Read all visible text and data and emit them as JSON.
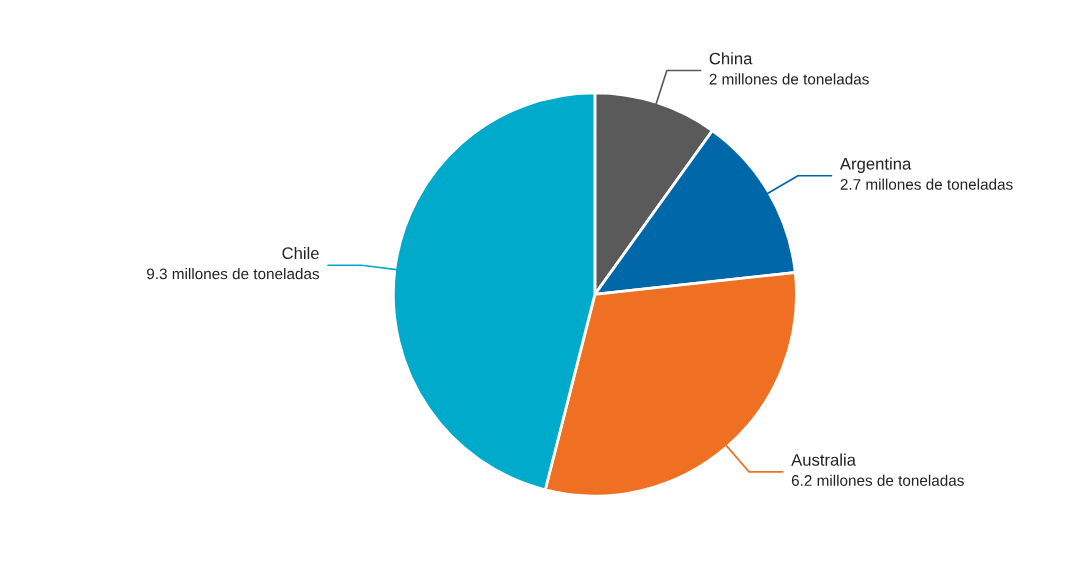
{
  "chart_data": {
    "type": "pie",
    "categories": [
      "China",
      "Argentina",
      "Australia",
      "Chile"
    ],
    "values": [
      2,
      2.7,
      6.2,
      9.3
    ],
    "colors": [
      "#5a5a5a",
      "#0068a8",
      "#ef7022",
      "#00aacb"
    ],
    "value_labels": [
      "2 millones de toneladas",
      "2.7 millones de toneladas",
      "6.2 millones de toneladas",
      "9.3 millones de toneladas"
    ]
  }
}
